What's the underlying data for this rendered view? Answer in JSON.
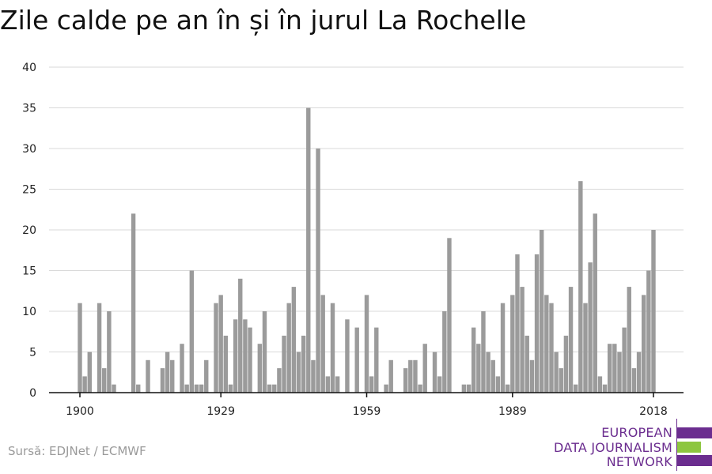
{
  "title": "Zile calde pe an în și în jurul La Rochelle",
  "source": "Sursă: EDJNet / ECMWF",
  "logo": {
    "lines": [
      "EUROPEAN",
      "DATA JOURNALISM",
      "NETWORK"
    ],
    "colors": {
      "purple": "#6b2d8f",
      "green": "#8dc63f"
    }
  },
  "chart_data": {
    "type": "bar",
    "title": "Zile calde pe an în și în jurul La Rochelle",
    "xlabel": "",
    "ylabel": "",
    "x_start": 1900,
    "x_end": 2018,
    "ylim": [
      0,
      40
    ],
    "yticks": [
      0,
      5,
      10,
      15,
      20,
      25,
      30,
      35,
      40
    ],
    "xticks": [
      1900,
      1929,
      1959,
      1989,
      2018
    ],
    "grid": true,
    "bar_color": "#9b9b9b",
    "values": [
      11,
      2,
      5,
      0,
      11,
      3,
      10,
      1,
      0,
      0,
      0,
      22,
      1,
      0,
      4,
      0,
      0,
      3,
      5,
      4,
      0,
      6,
      1,
      15,
      1,
      1,
      4,
      0,
      11,
      12,
      7,
      1,
      9,
      14,
      9,
      8,
      0,
      6,
      10,
      1,
      1,
      3,
      7,
      11,
      13,
      5,
      7,
      35,
      4,
      30,
      12,
      2,
      11,
      2,
      0,
      9,
      0,
      8,
      0,
      12,
      2,
      8,
      0,
      1,
      4,
      0,
      0,
      3,
      4,
      4,
      1,
      6,
      0,
      5,
      2,
      10,
      19,
      0,
      0,
      1,
      1,
      8,
      6,
      10,
      5,
      4,
      2,
      11,
      1,
      12,
      17,
      13,
      7,
      4,
      17,
      20,
      12,
      11,
      5,
      3,
      7,
      13,
      1,
      26,
      11,
      16,
      22,
      2,
      1,
      6,
      6,
      5,
      8,
      13,
      3,
      5,
      12,
      15,
      20
    ]
  }
}
